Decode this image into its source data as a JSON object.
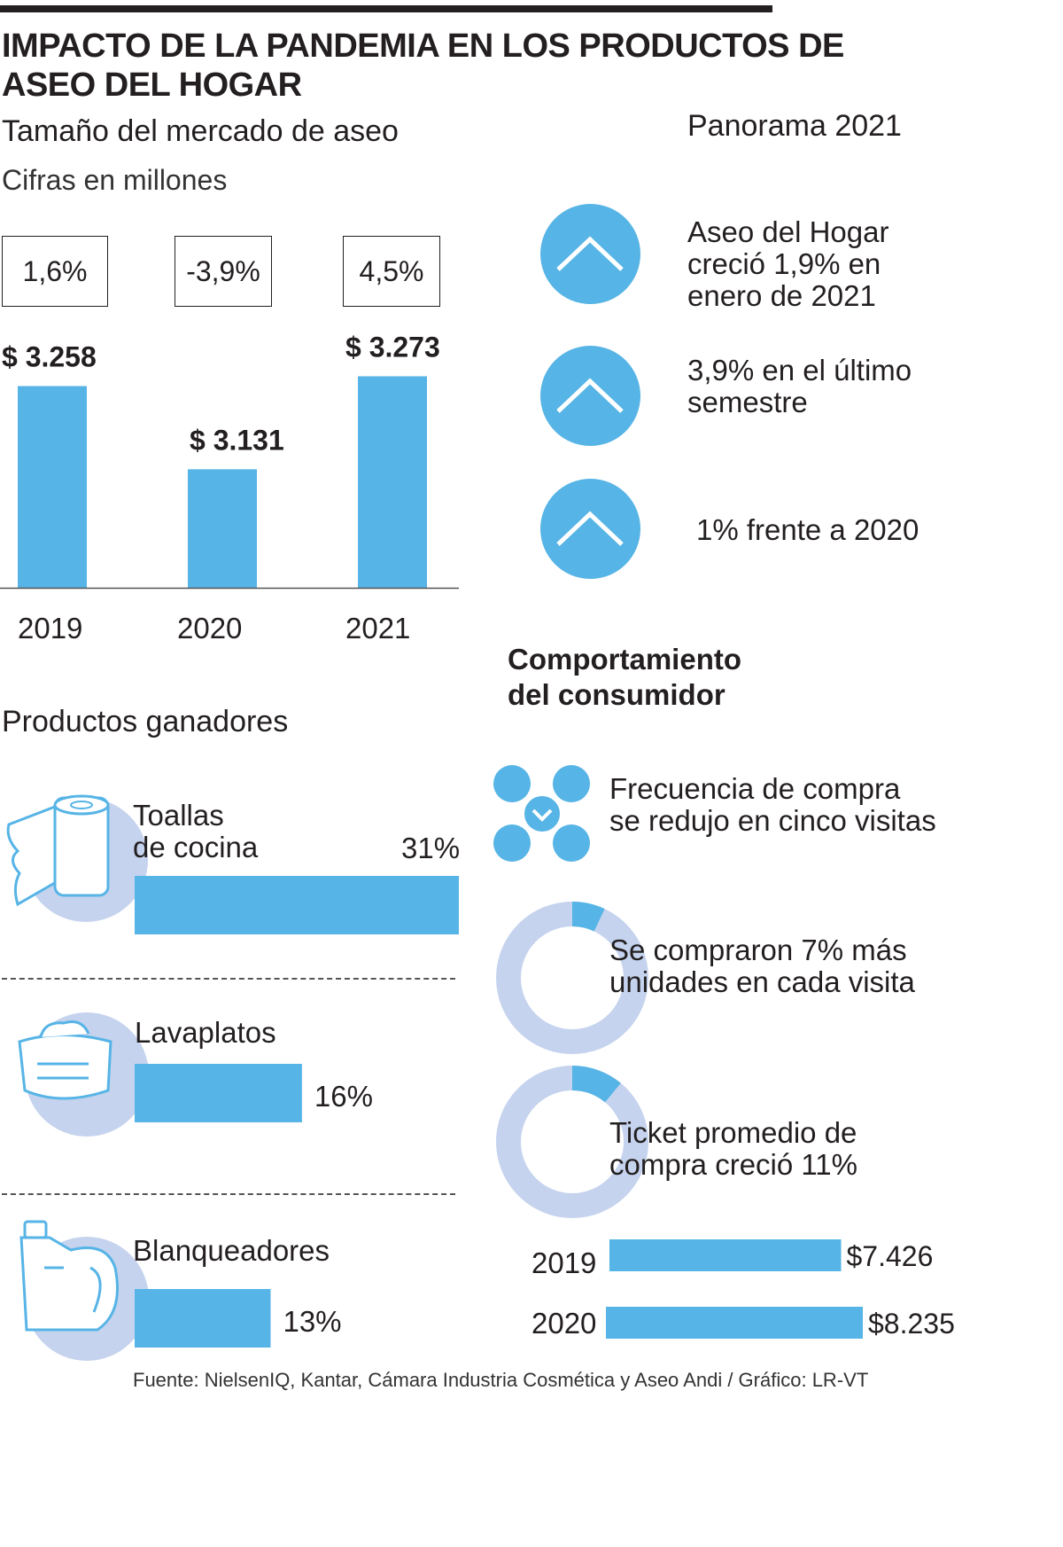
{
  "title": "IMPACTO DE LA PANDEMIA EN LOS PRODUCTOS DE ASEO DEL HOGAR",
  "market": {
    "heading": "Tamaño del mercado de aseo",
    "subheading": "Cifras en millones"
  },
  "chart_data": [
    {
      "type": "bar",
      "title": "Tamaño del mercado de aseo",
      "subtitle": "Cifras en millones",
      "categories": [
        "2019",
        "2020",
        "2021"
      ],
      "values": [
        3258,
        3131,
        3273
      ],
      "value_labels": [
        "$ 3.258",
        "$ 3.131",
        "$ 3.273"
      ],
      "change_labels": [
        "1,6%",
        "-3,9%",
        "4,5%"
      ],
      "color": "#56b4e6"
    },
    {
      "type": "bar",
      "title": "Productos ganadores",
      "orientation": "horizontal",
      "categories": [
        "Toallas de cocina",
        "Lavaplatos",
        "Blanqueadores"
      ],
      "values": [
        31,
        16,
        13
      ],
      "value_labels": [
        "31%",
        "16%",
        "13%"
      ],
      "color": "#56b4e6"
    },
    {
      "type": "bar",
      "orientation": "horizontal",
      "categories": [
        "2019",
        "2020"
      ],
      "values": [
        7426,
        8235
      ],
      "value_labels": [
        "$7.426",
        "$8.235"
      ],
      "color": "#56b4e6"
    }
  ],
  "panorama": {
    "heading": "Panorama 2021",
    "items": [
      {
        "icon": "chevron-up-icon",
        "text_lines": [
          "Aseo del Hogar",
          "creció 1,9% en",
          "enero de 2021"
        ]
      },
      {
        "icon": "chevron-up-icon",
        "text_lines": [
          "3,9% en el último",
          "semestre"
        ]
      },
      {
        "icon": "chevron-up-icon",
        "text_lines": [
          "1% frente a 2020"
        ]
      }
    ]
  },
  "products": {
    "heading": "Productos ganadores",
    "items": [
      {
        "icon": "paper-towel-icon",
        "label_lines": [
          "Toallas",
          "de cocina"
        ],
        "value_label": "31%"
      },
      {
        "icon": "dish-soap-icon",
        "label_lines": [
          "Lavaplatos"
        ],
        "value_label": "16%"
      },
      {
        "icon": "bleach-bottle-icon",
        "label_lines": [
          "Blanqueadores"
        ],
        "value_label": "13%"
      }
    ]
  },
  "consumer": {
    "heading_lines": [
      "Comportamiento",
      "del consumidor"
    ],
    "items": [
      {
        "icon": "frequency-down-icon",
        "text_lines": [
          "Frecuencia de compra",
          "se redujo en cinco visitas"
        ]
      },
      {
        "icon": "donut-7-icon",
        "share": 0.07,
        "text_lines": [
          "Se compraron 7% más",
          "unidades en cada visita"
        ]
      },
      {
        "icon": "donut-11-icon",
        "share": 0.11,
        "text_lines": [
          "Ticket promedio de",
          "compra creció 11%"
        ]
      }
    ]
  },
  "source": "Fuente: NielsenIQ, Kantar, Cámara Industria Cosmética y Aseo Andi / Gráfico: LR-VT",
  "colors": {
    "accent": "#56b4e6",
    "light": "#c5d3ee",
    "text": "#231f20"
  }
}
